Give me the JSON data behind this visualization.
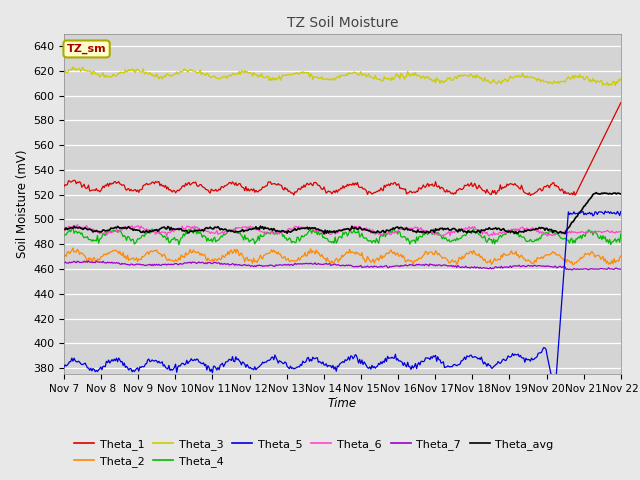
{
  "title": "TZ Soil Moisture",
  "xlabel": "Time",
  "ylabel": "Soil Moisture (mV)",
  "ylim": [
    375,
    650
  ],
  "background_color": "#e8e8e8",
  "plot_bg_color": "#d4d4d4",
  "legend_label": "TZ_sm",
  "series_order": [
    "Theta_3",
    "Theta_1",
    "Theta_2",
    "Theta_4",
    "Theta_6",
    "Theta_7",
    "Theta_avg",
    "Theta_5"
  ],
  "Theta_1": {
    "color": "#dd0000",
    "base": 527,
    "amp": 3.5,
    "freq": 14,
    "trend": -3
  },
  "Theta_2": {
    "color": "#ff8800",
    "base": 471,
    "amp": 4,
    "freq": 14,
    "trend": -2
  },
  "Theta_3": {
    "color": "#cccc00",
    "base": 619,
    "amp": 2.5,
    "freq": 10,
    "trend": -7
  },
  "Theta_4": {
    "color": "#00bb00",
    "base": 487,
    "amp": 4,
    "freq": 14,
    "trend": -1
  },
  "Theta_5": {
    "color": "#0000dd",
    "base": 382,
    "amp": 4,
    "freq": 14,
    "trend": 5
  },
  "Theta_6": {
    "color": "#ff44cc",
    "base": 492,
    "amp": 2.5,
    "freq": 10,
    "trend": -2
  },
  "Theta_7": {
    "color": "#9900cc",
    "base": 465,
    "amp": 1,
    "freq": 5,
    "trend": -4
  },
  "Theta_avg": {
    "color": "#000000",
    "base": 492,
    "amp": 1.5,
    "freq": 12,
    "trend": -1
  },
  "xtick_labels": [
    "Nov 7",
    "Nov 8",
    "Nov 9",
    "Nov 10",
    "Nov 11",
    "Nov 12",
    "Nov 13",
    "Nov 14",
    "Nov 15",
    "Nov 16",
    "Nov 17",
    "Nov 18",
    "Nov 19",
    "Nov 20",
    "Nov 21",
    "Nov 22"
  ],
  "n_points": 500
}
